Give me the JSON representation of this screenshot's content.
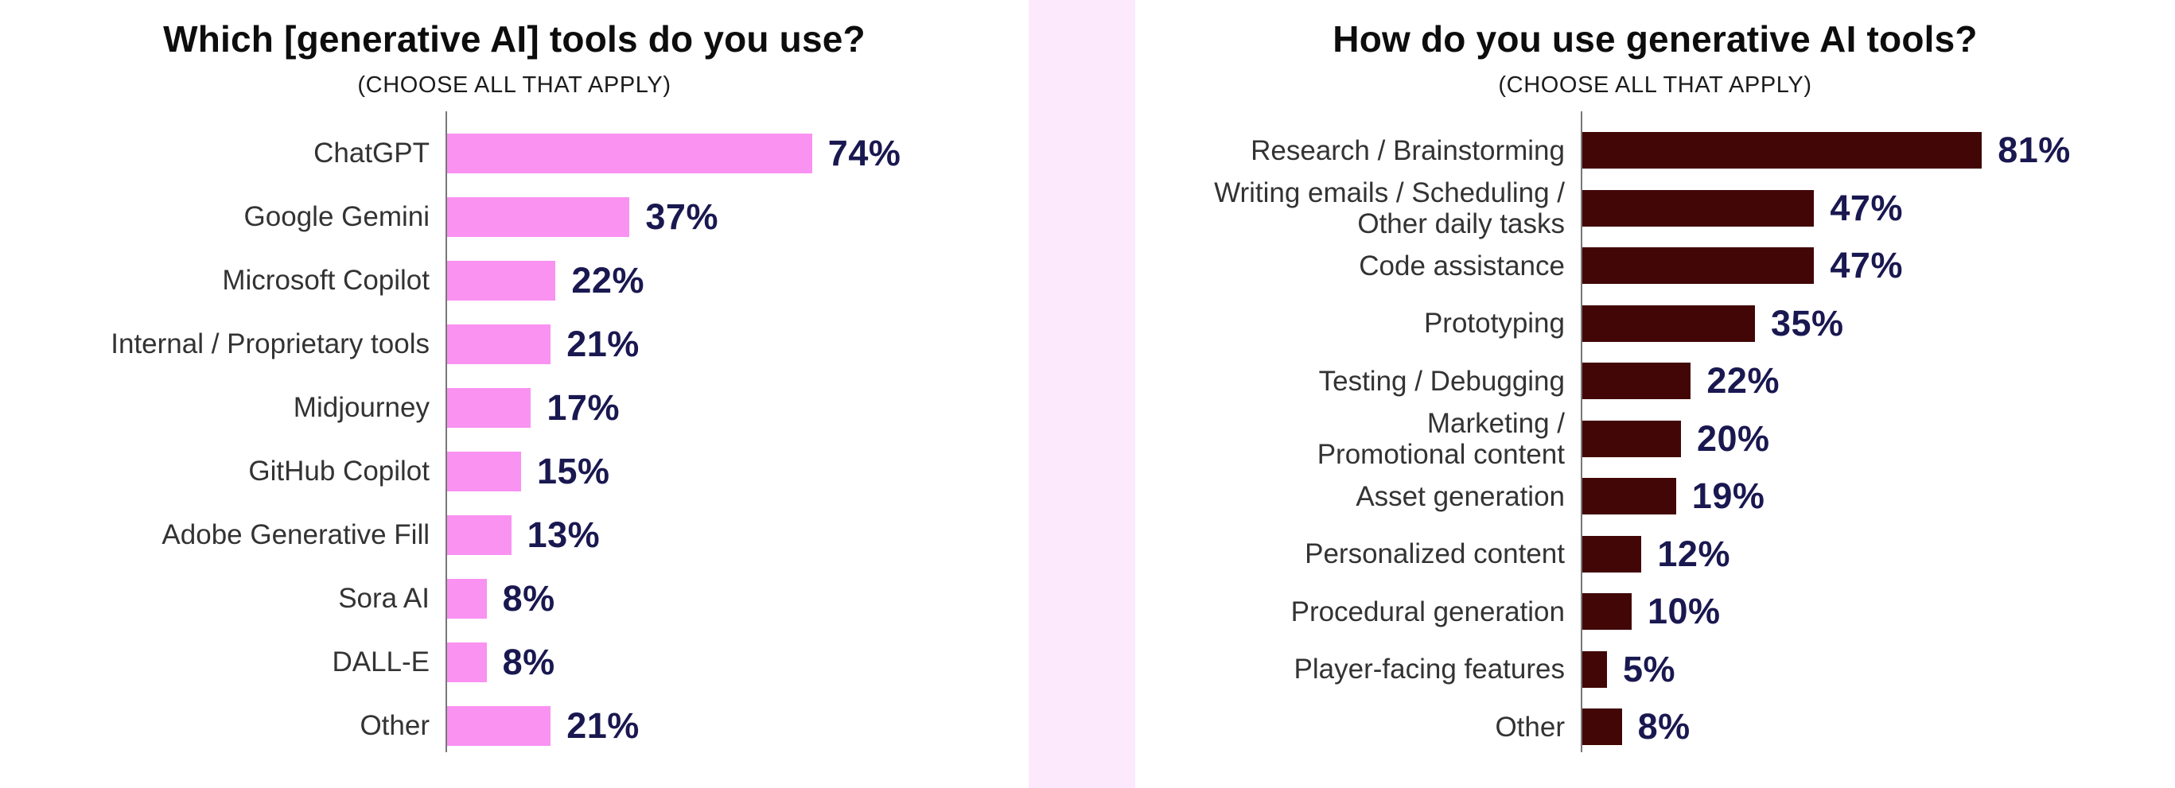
{
  "page": {
    "background_color": "#ffffff",
    "divider_color": "#FCE9FB",
    "axis_color": "#777777",
    "value_label_color": "#1A1850",
    "category_label_color": "#333333"
  },
  "chart_data": [
    {
      "type": "bar",
      "orientation": "horizontal",
      "title": "Which [generative AI] tools do you use?",
      "subtitle": "(CHOOSE ALL THAT APPLY)",
      "categories": [
        "ChatGPT",
        "Google Gemini",
        "Microsoft Copilot",
        "Internal / Proprietary tools",
        "Midjourney",
        "GitHub Copilot",
        "Adobe Generative Fill",
        "Sora AI",
        "DALL-E",
        "Other"
      ],
      "values": [
        74,
        37,
        22,
        21,
        17,
        15,
        13,
        8,
        8,
        21
      ],
      "value_suffix": "%",
      "bar_color": "#FA92F2",
      "xlim": [
        0,
        100
      ],
      "grid": false,
      "legend": "none",
      "value_labels_position": "end-of-bar"
    },
    {
      "type": "bar",
      "orientation": "horizontal",
      "title": "How do you use generative AI tools?",
      "subtitle": "(CHOOSE ALL THAT APPLY)",
      "categories": [
        "Research / Brainstorming",
        "Writing emails / Scheduling /\nOther daily tasks",
        "Code assistance",
        "Prototyping",
        "Testing / Debugging",
        "Marketing /\nPromotional content",
        "Asset generation",
        "Personalized content",
        "Procedural generation",
        "Player-facing features",
        "Other"
      ],
      "values": [
        81,
        47,
        47,
        35,
        22,
        20,
        19,
        12,
        10,
        5,
        8
      ],
      "value_suffix": "%",
      "bar_color": "#420607",
      "xlim": [
        0,
        100
      ],
      "grid": false,
      "legend": "none",
      "value_labels_position": "end-of-bar"
    }
  ]
}
